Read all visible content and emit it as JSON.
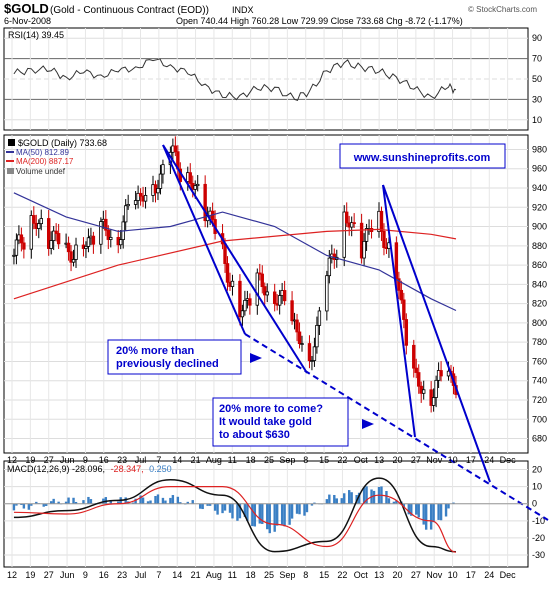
{
  "header": {
    "symbol": "$GOLD",
    "description": "(Gold - Continuous Contract (EOD))",
    "exchange": "INDX",
    "date": "6-Nov-2008",
    "ohlc": "Open 740.44  High 760.28  Low 729.99  Close 733.68  Chg -8.72 (-1.17%)",
    "watermark": "© StockCharts.com"
  },
  "colors": {
    "price_up": "#000000",
    "price_down": "#cc0000",
    "ma50": "#333399",
    "ma200": "#dd2222",
    "trendline": "#0000cc",
    "callout_text": "#0000cc",
    "macd_hist": "#3a7fc4",
    "signal": "#dd2222"
  },
  "chart_data": [
    {
      "type": "line",
      "title": "RSI(14) 39.45",
      "yticks": [
        10,
        30,
        50,
        70,
        90
      ],
      "ylim": [
        0,
        100
      ],
      "x": [
        "2008-05-12",
        "2008-05-19",
        "2008-05-27",
        "2008-06-02",
        "2008-06-09",
        "2008-06-16",
        "2008-06-23",
        "2008-06-30",
        "2008-07-07",
        "2008-07-14",
        "2008-07-21",
        "2008-07-28",
        "2008-08-04",
        "2008-08-11",
        "2008-08-18",
        "2008-08-25",
        "2008-09-02",
        "2008-09-08",
        "2008-09-15",
        "2008-09-22",
        "2008-09-29",
        "2008-10-06",
        "2008-10-13",
        "2008-10-20",
        "2008-10-27",
        "2008-11-03",
        "2008-11-06"
      ],
      "values": [
        55,
        60,
        58,
        52,
        56,
        54,
        57,
        62,
        68,
        64,
        55,
        45,
        32,
        34,
        40,
        42,
        30,
        38,
        58,
        66,
        62,
        57,
        52,
        40,
        33,
        42,
        39.45
      ]
    },
    {
      "type": "line",
      "legend": [
        "$GOLD (Daily) 733.68",
        "MA(50) 812.89",
        "MA(200) 887.17",
        "Volume undef"
      ],
      "yticks": [
        680,
        700,
        720,
        740,
        760,
        780,
        800,
        820,
        840,
        860,
        880,
        900,
        920,
        940,
        960,
        980
      ],
      "ylim": [
        665,
        995
      ],
      "xtick_labels": [
        "12",
        "19",
        "27",
        "Jun",
        "9",
        "16",
        "23",
        "Jul",
        "7",
        "14",
        "21",
        "Aug",
        "11",
        "18",
        "25",
        "Sep",
        "8",
        "15",
        "22",
        "Oct",
        "13",
        "20",
        "27",
        "Nov",
        "10",
        "17",
        "24",
        "Dec"
      ],
      "series": [
        {
          "name": "$GOLD (Daily) 733.68",
          "x": [
            "2008-05-12",
            "2008-05-19",
            "2008-05-27",
            "2008-06-02",
            "2008-06-09",
            "2008-06-16",
            "2008-06-23",
            "2008-06-30",
            "2008-07-07",
            "2008-07-14",
            "2008-07-21",
            "2008-07-28",
            "2008-08-04",
            "2008-08-11",
            "2008-08-18",
            "2008-08-25",
            "2008-09-02",
            "2008-09-08",
            "2008-09-15",
            "2008-09-22",
            "2008-09-29",
            "2008-10-06",
            "2008-10-13",
            "2008-10-20",
            "2008-10-27",
            "2008-11-03",
            "2008-11-06"
          ],
          "values": [
            870,
            905,
            890,
            875,
            880,
            895,
            890,
            930,
            940,
            975,
            950,
            920,
            875,
            810,
            840,
            830,
            800,
            760,
            845,
            910,
            880,
            910,
            850,
            740,
            725,
            750,
            733.68
          ]
        },
        {
          "name": "MA(50) 812.89",
          "x": [
            "2008-05-12",
            "2008-06-02",
            "2008-06-23",
            "2008-07-14",
            "2008-08-04",
            "2008-08-25",
            "2008-09-15",
            "2008-10-06",
            "2008-10-27",
            "2008-11-06"
          ],
          "values": [
            935,
            910,
            895,
            900,
            915,
            900,
            870,
            855,
            825,
            812.89
          ]
        },
        {
          "name": "MA(200) 887.17",
          "x": [
            "2008-05-12",
            "2008-06-23",
            "2008-08-04",
            "2008-09-15",
            "2008-10-06",
            "2008-10-27",
            "2008-11-06"
          ],
          "values": [
            825,
            860,
            885,
            895,
            897,
            892,
            887.17
          ]
        }
      ],
      "annotations": [
        {
          "text": "www.sunshineprofits.com"
        },
        {
          "text": "20% more than\npreviously declined"
        },
        {
          "text": "20% more to come?\nIt would take gold\nto about $630"
        }
      ]
    },
    {
      "type": "line",
      "title": "MACD(12,26,9) -28.096, -28.347, 0.250",
      "yticks": [
        -30,
        -20,
        -10,
        0,
        10,
        20
      ],
      "ylim": [
        -37,
        25
      ],
      "x": [
        "2008-05-12",
        "2008-06-02",
        "2008-06-23",
        "2008-07-14",
        "2008-08-04",
        "2008-08-25",
        "2008-09-15",
        "2008-10-06",
        "2008-10-27",
        "2008-11-06"
      ],
      "series": [
        {
          "name": "MACD",
          "values": [
            -8,
            -4,
            2,
            14,
            5,
            -28,
            -22,
            15,
            -25,
            -28.096
          ]
        },
        {
          "name": "Signal",
          "values": [
            -5,
            -6,
            0,
            10,
            10,
            -12,
            -25,
            5,
            -10,
            -28.347
          ]
        },
        {
          "name": "Histogram",
          "values": [
            -3,
            2,
            2,
            4,
            -5,
            -16,
            3,
            10,
            -15,
            0.25
          ]
        }
      ]
    }
  ],
  "macd_header": {
    "prefix": "MACD(12,26,9) -28.096,",
    "signal": "-28.347,",
    "hist": "0.250"
  },
  "xaxis_labels": [
    "12",
    "19",
    "27",
    "Jun",
    "9",
    "16",
    "23",
    "Jul",
    "7",
    "14",
    "21",
    "Aug",
    "11",
    "18",
    "25",
    "Sep",
    "8",
    "15",
    "22",
    "Oct",
    "13",
    "20",
    "27",
    "Nov",
    "10",
    "17",
    "24",
    "Dec"
  ]
}
